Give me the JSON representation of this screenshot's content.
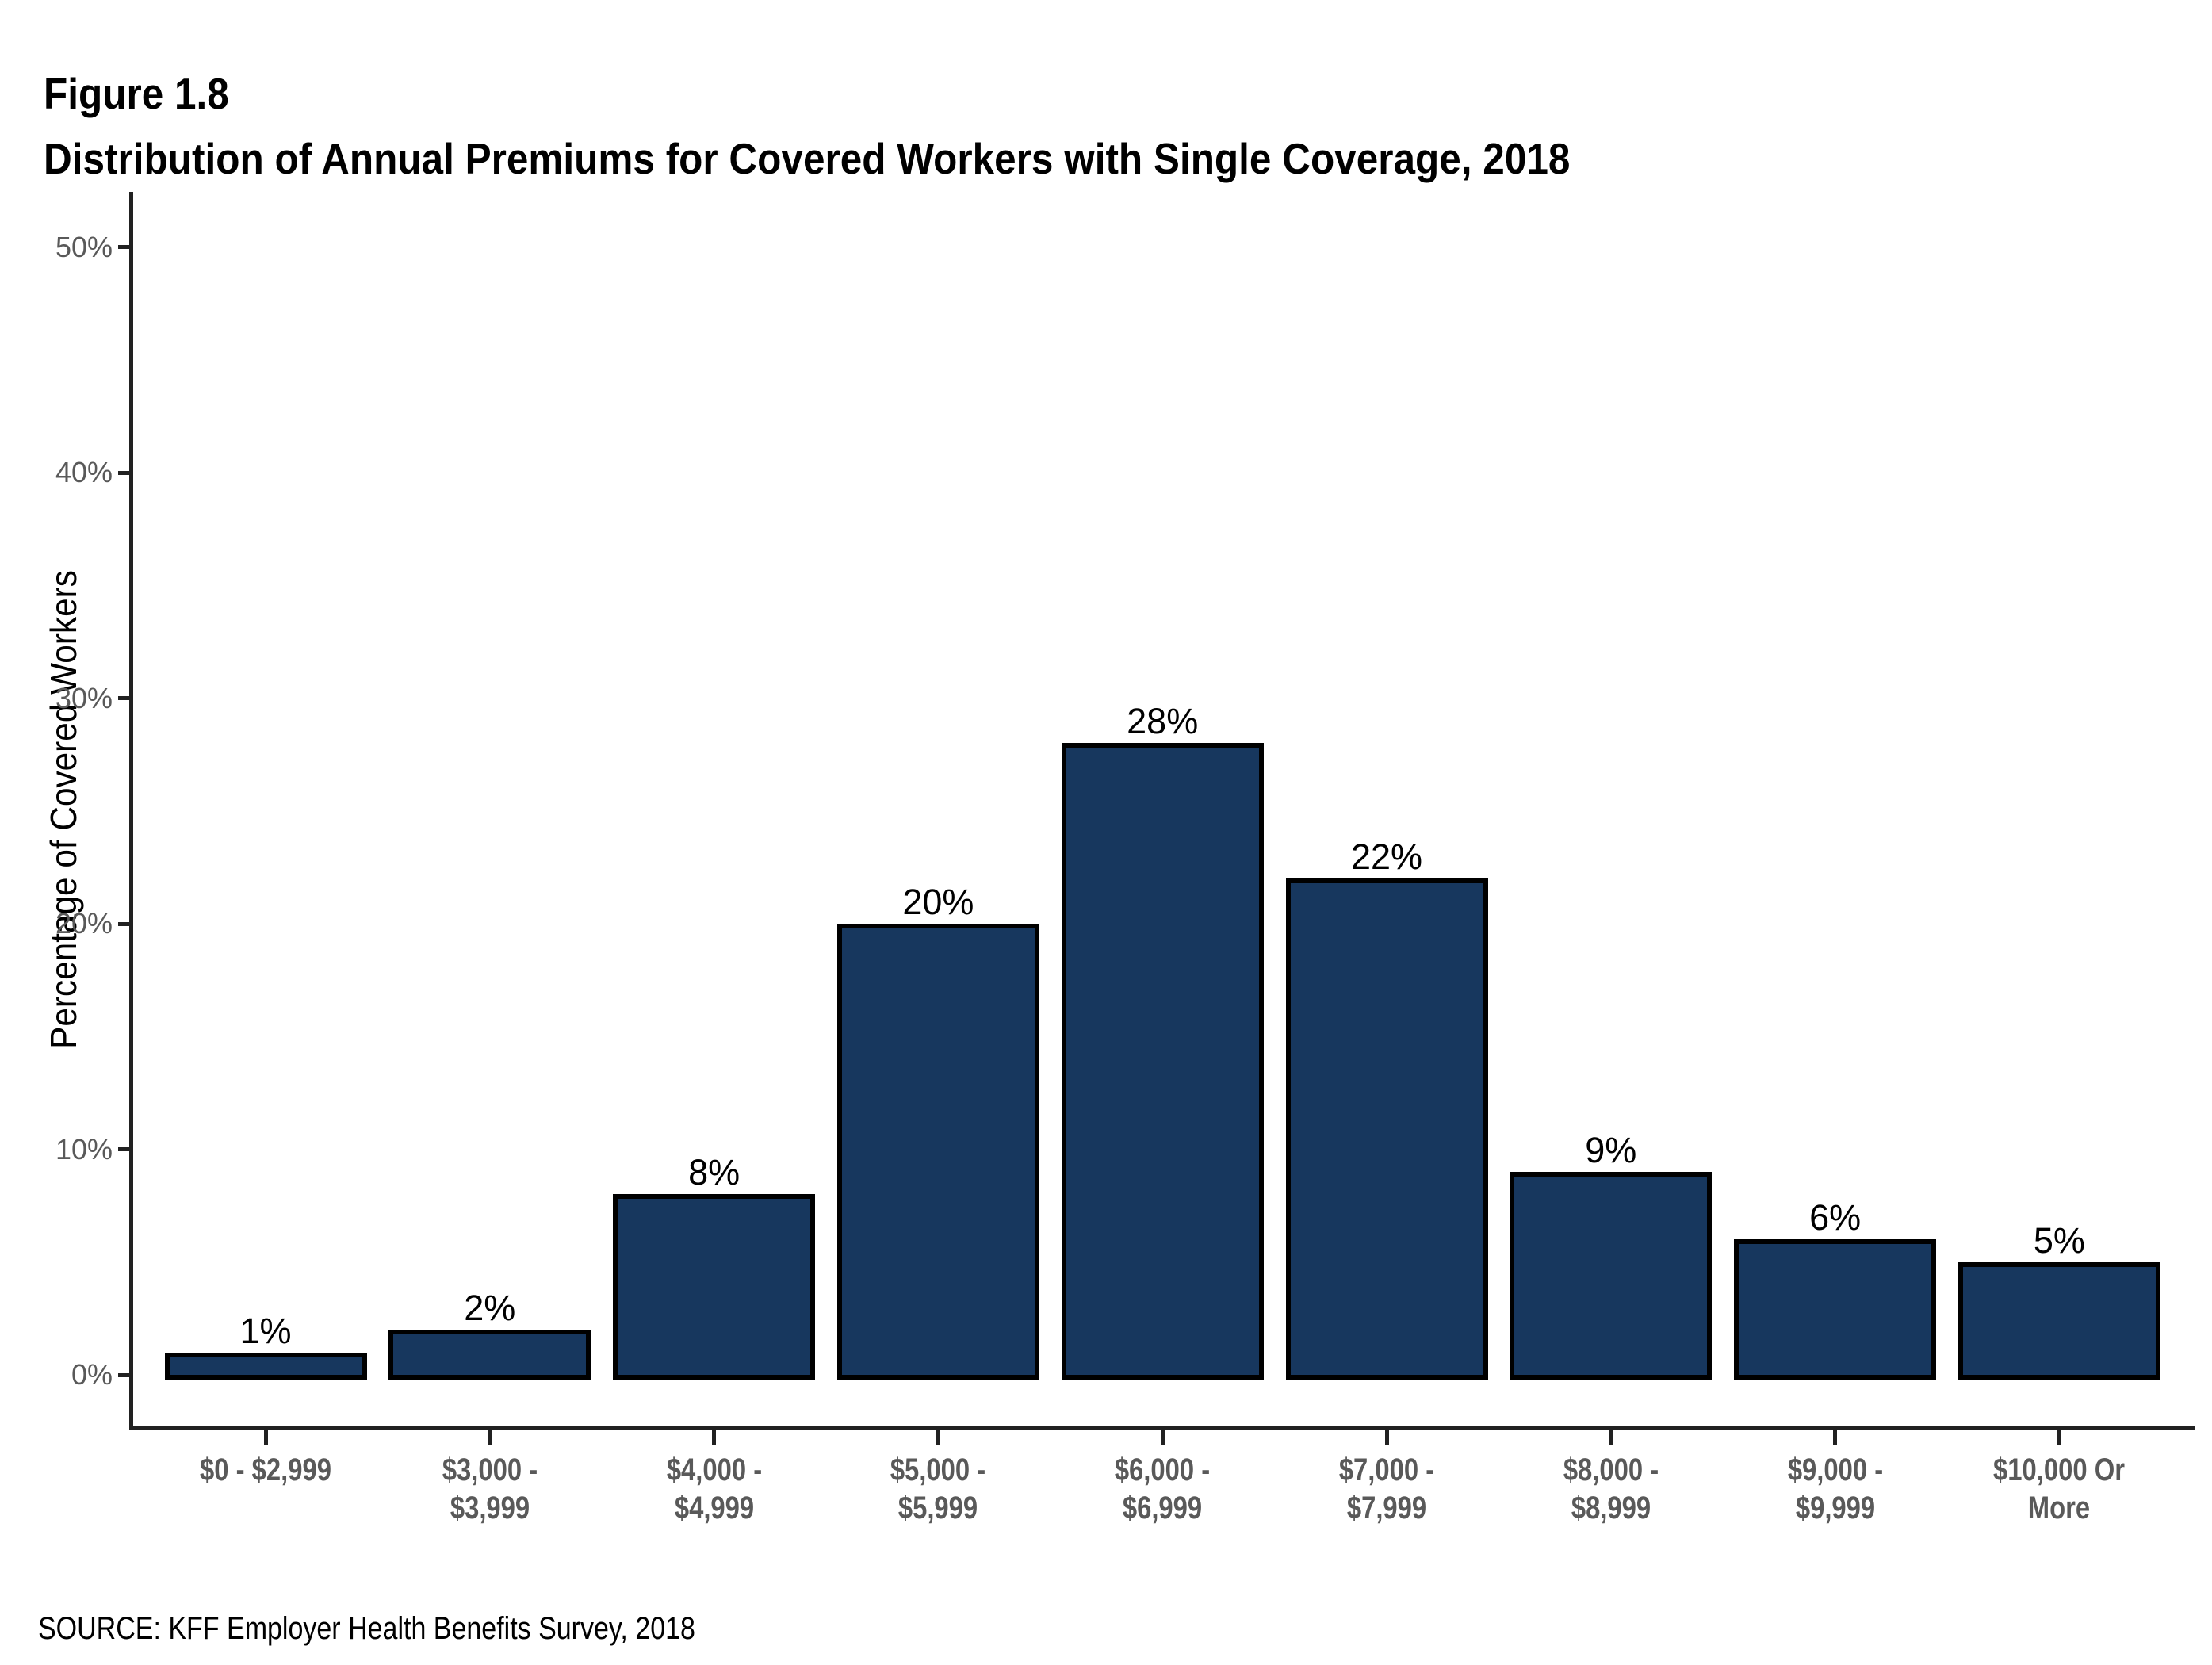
{
  "header": {
    "figure_label": "Figure 1.8",
    "title": "Distribution of Annual Premiums for Covered Workers with Single Coverage, 2018"
  },
  "footer": {
    "source": "SOURCE: KFF Employer Health Benefits Survey, 2018"
  },
  "chart_data": {
    "type": "bar",
    "title": "Distribution of Annual Premiums for Covered Workers with Single Coverage, 2018",
    "categories": [
      "$0 - $2,999",
      "$3,000 - $3,999",
      "$4,000 - $4,999",
      "$5,000 - $5,999",
      "$6,000 - $6,999",
      "$7,000 - $7,999",
      "$8,000 - $8,999",
      "$9,000 - $9,999",
      "$10,000 Or More"
    ],
    "category_lines": [
      [
        "$0 - $2,999"
      ],
      [
        "$3,000 -",
        "$3,999"
      ],
      [
        "$4,000 -",
        "$4,999"
      ],
      [
        "$5,000 -",
        "$5,999"
      ],
      [
        "$6,000 -",
        "$6,999"
      ],
      [
        "$7,000 -",
        "$7,999"
      ],
      [
        "$8,000 -",
        "$8,999"
      ],
      [
        "$9,000 -",
        "$9,999"
      ],
      [
        "$10,000 Or",
        "More"
      ]
    ],
    "values": [
      1,
      2,
      8,
      20,
      28,
      22,
      9,
      6,
      5
    ],
    "value_labels": [
      "1%",
      "2%",
      "8%",
      "20%",
      "28%",
      "22%",
      "9%",
      "6%",
      "5%"
    ],
    "xlabel": "",
    "ylabel": "Percentage of Covered Workers",
    "ylim": [
      0,
      50
    ],
    "yticks": [
      0,
      10,
      20,
      30,
      40,
      50
    ],
    "ytick_labels": [
      "0%",
      "10%",
      "20%",
      "30%",
      "40%",
      "50%"
    ],
    "grid": false,
    "legend_position": "none",
    "colors": {
      "bar_fill": "#17375E",
      "bar_border": "#000000",
      "axis": "#212121",
      "tick_label": "#595959",
      "value_label": "#000000",
      "title": "#000000",
      "background": "#FFFFFF"
    }
  }
}
